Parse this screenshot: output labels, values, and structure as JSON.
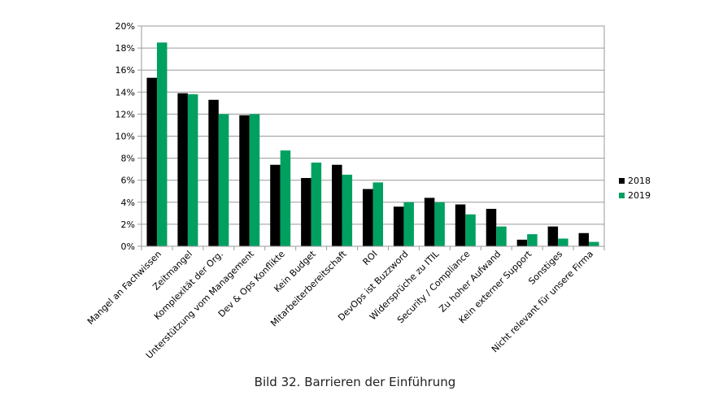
{
  "caption": "Bild 32. Barrieren der Einführung",
  "chart_data": {
    "type": "bar",
    "title": "",
    "xlabel": "",
    "ylabel": "",
    "ylim": [
      0,
      20
    ],
    "y_ticks": [
      "0%",
      "2%",
      "4%",
      "6%",
      "8%",
      "10%",
      "12%",
      "14%",
      "16%",
      "18%",
      "20%"
    ],
    "grid": true,
    "legend_position": "right",
    "categories": [
      "Mangel an Fachwissen",
      "Zeitmangel",
      "Komplexität der Org.",
      "Unterstützung vom Management",
      "Dev & Ops Konflikte",
      "Kein Budget",
      "Mitarbeiterbereitschaft",
      "ROI",
      "DevOps ist Buzzword",
      "Widersprüche zu ITIL",
      "Security / Compliance",
      "Zu hoher Aufwand",
      "Kein externer Support",
      "Sonstiges",
      "Nicht relevant für unsere Firma"
    ],
    "series": [
      {
        "name": "2018",
        "color": "#000000",
        "values": [
          15.3,
          13.9,
          13.3,
          11.9,
          7.4,
          6.2,
          7.4,
          5.2,
          3.6,
          4.4,
          3.8,
          3.4,
          0.6,
          1.8,
          1.2
        ]
      },
      {
        "name": "2019",
        "color": "#00a060",
        "values": [
          18.5,
          13.8,
          12.0,
          12.0,
          8.7,
          7.6,
          6.5,
          5.8,
          4.0,
          4.0,
          2.9,
          1.8,
          1.1,
          0.7,
          0.4
        ]
      }
    ]
  }
}
